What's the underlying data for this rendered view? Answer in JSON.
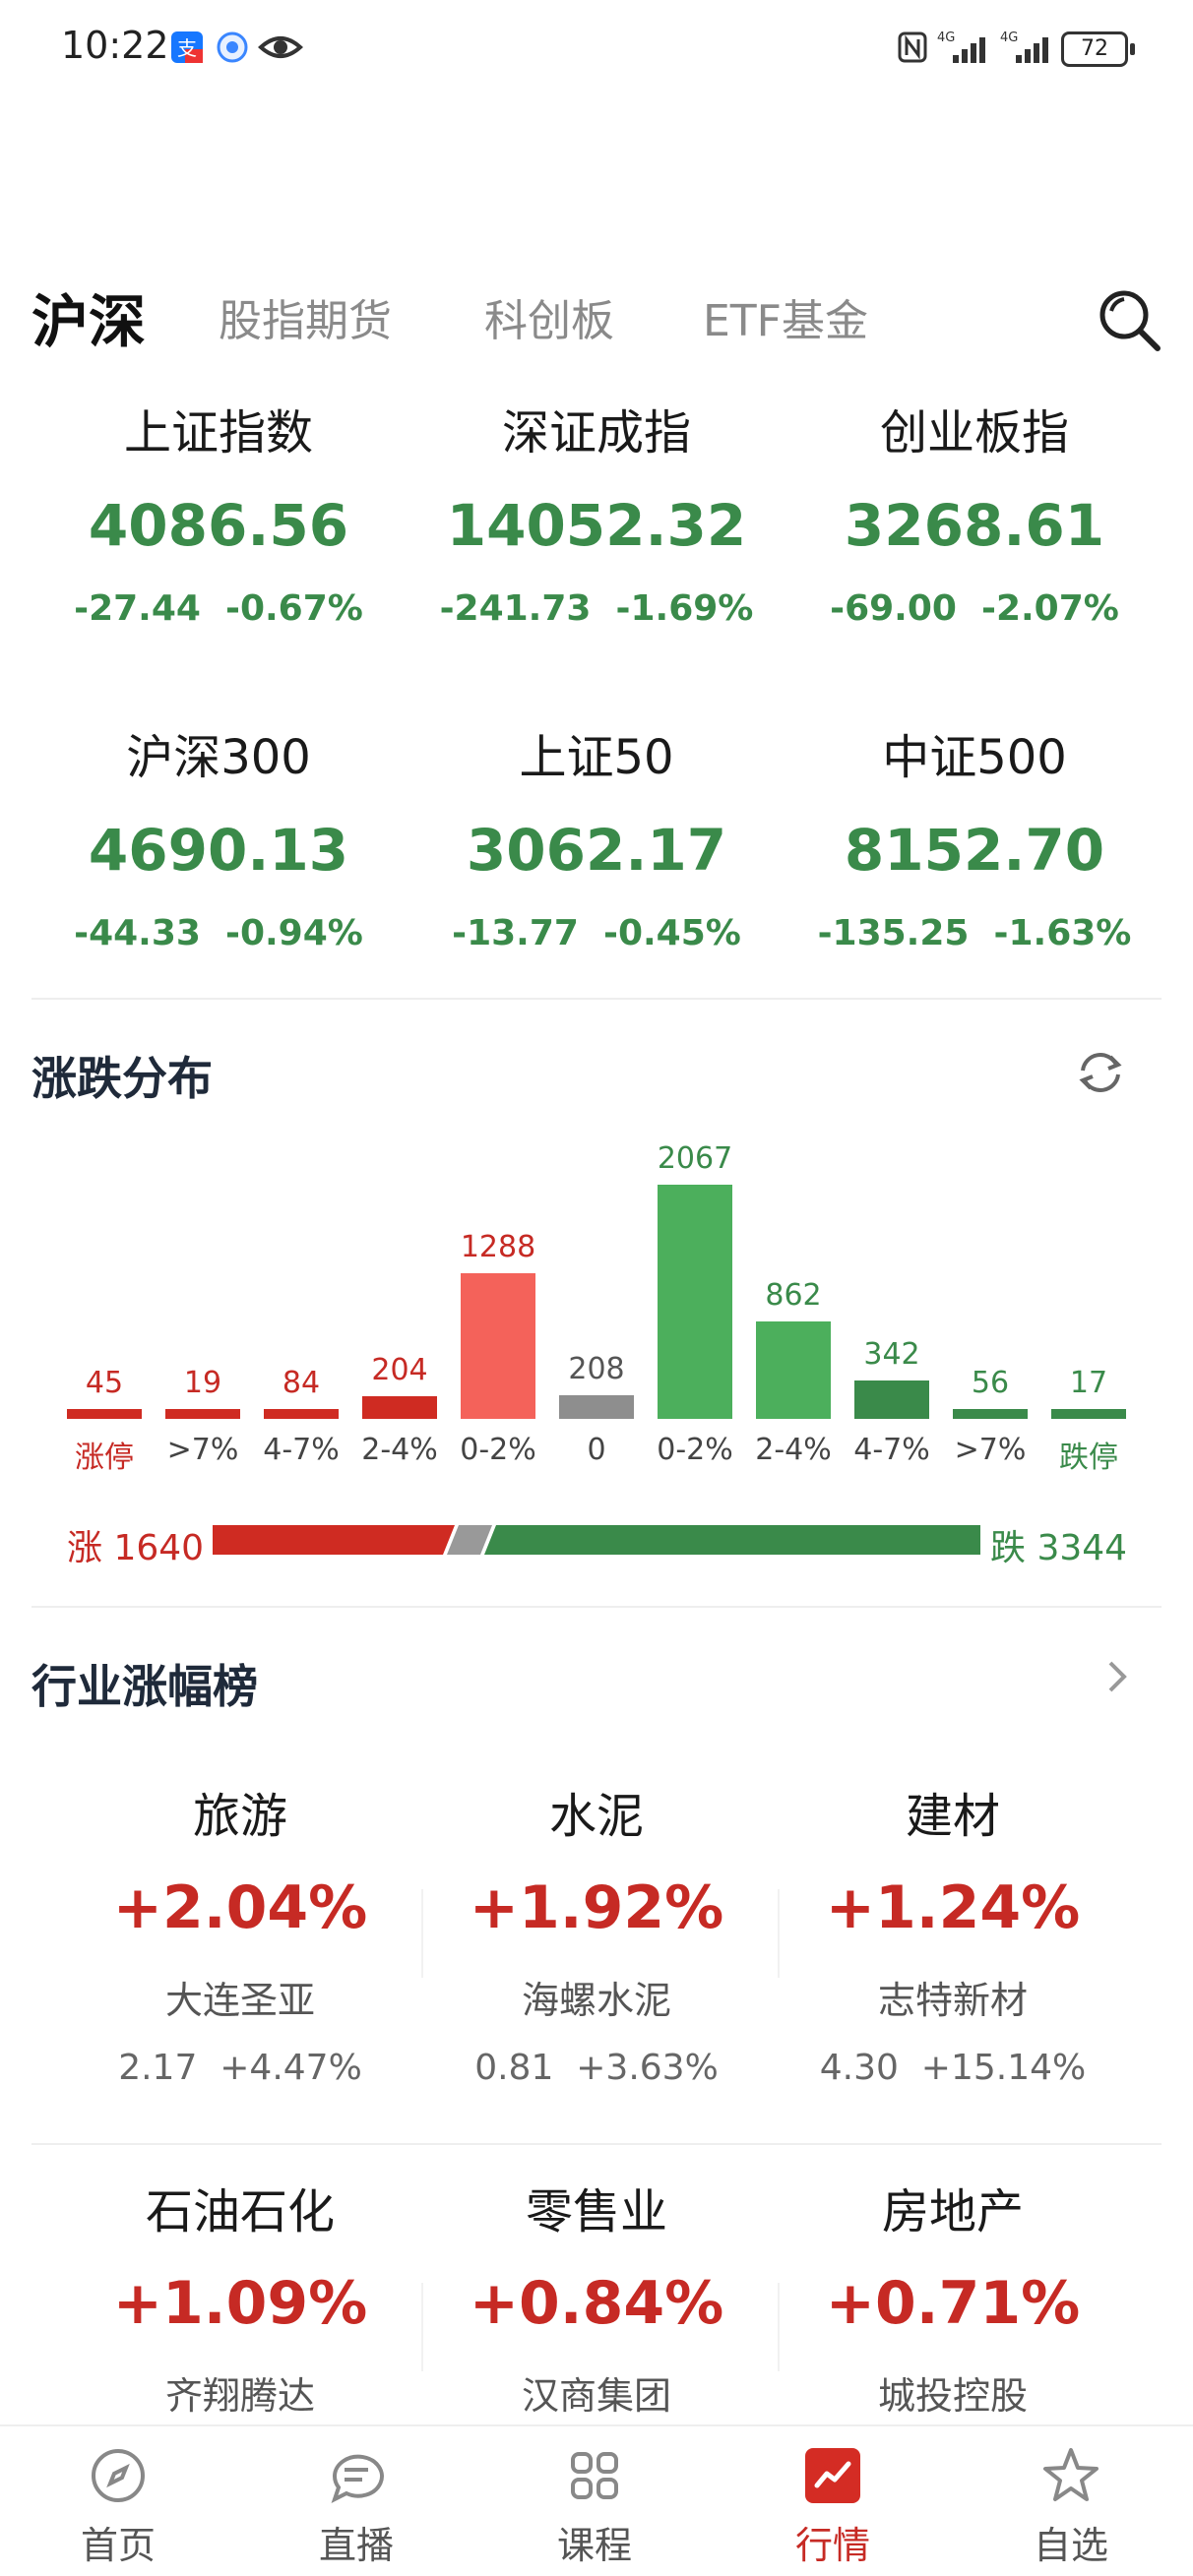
{
  "status_bar": {
    "time": "10:22",
    "battery": "72"
  },
  "tabs": [
    {
      "label": "沪深",
      "active": true
    },
    {
      "label": "股指期货",
      "active": false
    },
    {
      "label": "科创板",
      "active": false
    },
    {
      "label": "ETF基金",
      "active": false
    }
  ],
  "indices": [
    {
      "name": "上证指数",
      "value": "4086.56",
      "change": "-27.44",
      "pct": "-0.67%"
    },
    {
      "name": "深证成指",
      "value": "14052.32",
      "change": "-241.73",
      "pct": "-1.69%"
    },
    {
      "name": "创业板指",
      "value": "3268.61",
      "change": "-69.00",
      "pct": "-2.07%"
    },
    {
      "name": "沪深300",
      "value": "4690.13",
      "change": "-44.33",
      "pct": "-0.94%"
    },
    {
      "name": "上证50",
      "value": "3062.17",
      "change": "-13.77",
      "pct": "-0.45%"
    },
    {
      "name": "中证500",
      "value": "8152.70",
      "change": "-135.25",
      "pct": "-1.63%"
    }
  ],
  "distribution": {
    "title": "涨跌分布",
    "rise_label": "涨 1640",
    "fall_label": "跌 3344",
    "rise_count": 1640,
    "flat_count": 208,
    "fall_count": 3344,
    "colors": {
      "up": "#cf2b22",
      "up_light": "#f4625a",
      "flat": "#8e8e8e",
      "down": "#3a8a4a",
      "down_light": "#4caf5c"
    }
  },
  "chart_data": {
    "type": "bar",
    "categories": [
      "涨停",
      ">7%",
      "4-7%",
      "2-4%",
      "0-2%",
      "0",
      "0-2%",
      "2-4%",
      "4-7%",
      ">7%",
      "跌停"
    ],
    "values": [
      45,
      19,
      84,
      204,
      1288,
      208,
      2067,
      862,
      342,
      56,
      17
    ],
    "value_labels": [
      "45",
      "19",
      "84",
      "204",
      "1288",
      "208",
      "2067",
      "862",
      "342",
      "56",
      "17"
    ],
    "groups": [
      "up",
      "up",
      "up",
      "up",
      "up_light",
      "flat",
      "down_light",
      "down_light",
      "down",
      "down",
      "down"
    ],
    "title": "涨跌分布"
  },
  "industry": {
    "title": "行业涨幅榜",
    "items": [
      {
        "name": "旅游",
        "pct": "+2.04%",
        "stock": "大连圣亚",
        "price": "2.17",
        "stock_pct": "+4.47%"
      },
      {
        "name": "水泥",
        "pct": "+1.92%",
        "stock": "海螺水泥",
        "price": "0.81",
        "stock_pct": "+3.63%"
      },
      {
        "name": "建材",
        "pct": "+1.24%",
        "stock": "志特新材",
        "price": "4.30",
        "stock_pct": "+15.14%"
      },
      {
        "name": "石油石化",
        "pct": "+1.09%",
        "stock": "齐翔腾达",
        "price": "",
        "stock_pct": ""
      },
      {
        "name": "零售业",
        "pct": "+0.84%",
        "stock": "汉商集团",
        "price": "",
        "stock_pct": ""
      },
      {
        "name": "房地产",
        "pct": "+0.71%",
        "stock": "城投控股",
        "price": "",
        "stock_pct": ""
      }
    ]
  },
  "nav": [
    {
      "label": "首页",
      "icon": "compass-icon",
      "active": false
    },
    {
      "label": "直播",
      "icon": "chat-bubble-icon",
      "active": false
    },
    {
      "label": "课程",
      "icon": "grid-icon",
      "active": false
    },
    {
      "label": "行情",
      "icon": "chart-icon",
      "active": true
    },
    {
      "label": "自选",
      "icon": "star-icon",
      "active": false
    }
  ]
}
